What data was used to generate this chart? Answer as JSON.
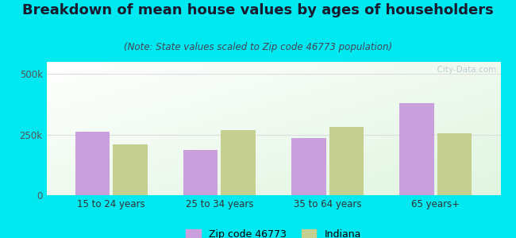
{
  "title": "Breakdown of mean house values by ages of householders",
  "subtitle": "(Note: State values scaled to Zip code 46773 population)",
  "categories": [
    "15 to 24 years",
    "25 to 34 years",
    "35 to 64 years",
    "65 years+"
  ],
  "zip_values": [
    263000,
    185000,
    235000,
    380000
  ],
  "indiana_values": [
    210000,
    270000,
    280000,
    255000
  ],
  "zip_color": "#c9a0dc",
  "indiana_color": "#c5d090",
  "background_outer": "#00e8f0",
  "ylim": [
    0,
    550000
  ],
  "ytick_labels": [
    "0",
    "250k",
    "500k"
  ],
  "ytick_vals": [
    0,
    250000,
    500000
  ],
  "legend_zip_label": "Zip code 46773",
  "legend_indiana_label": "Indiana",
  "title_fontsize": 13,
  "subtitle_fontsize": 8.5,
  "watermark": "  City-Data.com"
}
